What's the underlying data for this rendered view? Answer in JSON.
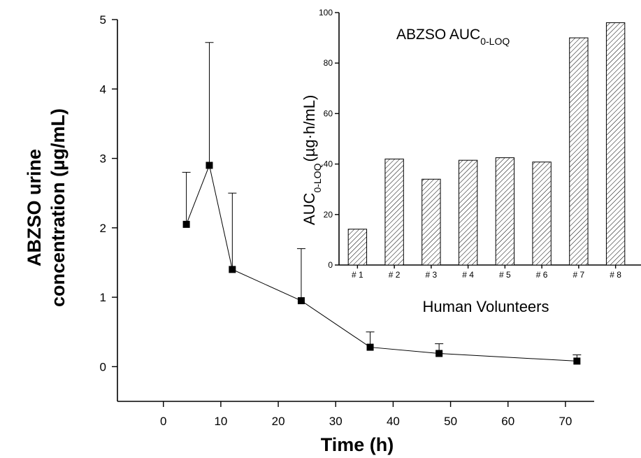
{
  "chart_data": [
    {
      "type": "line",
      "xlabel": "Time (h)",
      "ylabel_line1": "ABZSO urine",
      "ylabel_line2": "concentration (µg/mL)",
      "xlim": [
        -8,
        75
      ],
      "ylim": [
        -0.5,
        5
      ],
      "xticks": [
        0,
        10,
        20,
        30,
        40,
        50,
        60,
        70
      ],
      "yticks": [
        0,
        1,
        2,
        3,
        4,
        5
      ],
      "grid": false,
      "series": [
        {
          "x": [
            4,
            8,
            12,
            24,
            36,
            48,
            72
          ],
          "y": [
            2.05,
            2.9,
            1.4,
            0.95,
            0.28,
            0.19,
            0.08
          ],
          "error_upper": [
            2.8,
            4.67,
            2.5,
            1.7,
            0.5,
            0.33,
            0.17
          ]
        }
      ]
    },
    {
      "type": "bar",
      "title_main": "ABZSO AUC",
      "title_sub": "0-LOQ",
      "ylabel_main": "AUC",
      "ylabel_sub": "0-LOQ",
      "ylabel_units": "(µg·h/mL)",
      "xlabel": "Human Volunteers",
      "categories": [
        "# 1",
        "# 2",
        "# 3",
        "# 4",
        "# 5",
        "# 6",
        "# 7",
        "# 8"
      ],
      "values": [
        14.2,
        42,
        34,
        41.5,
        42.5,
        40.8,
        90,
        96
      ],
      "ylim": [
        0,
        100
      ],
      "yticks": [
        0,
        20,
        40,
        60,
        80,
        100
      ],
      "grid": false,
      "bar_pattern": "diagonal-hatch"
    }
  ]
}
